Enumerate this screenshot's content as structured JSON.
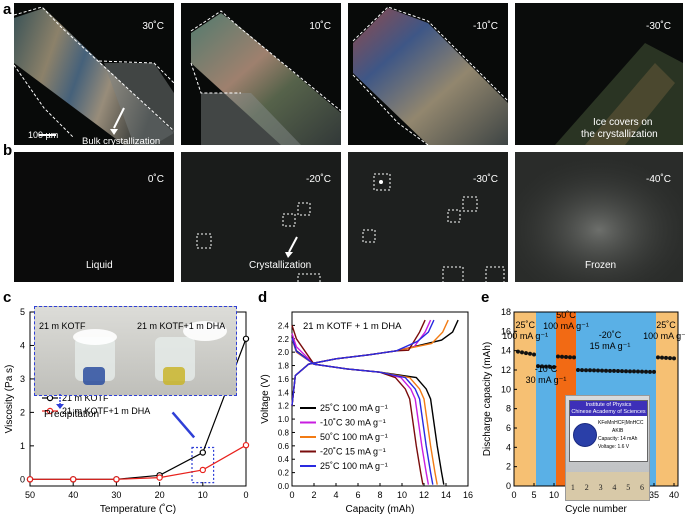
{
  "labels": {
    "a": "a",
    "b": "b",
    "c": "c",
    "d": "d",
    "e": "e"
  },
  "row_a": {
    "panels": [
      {
        "temp": "30˚C"
      },
      {
        "temp": "10˚C"
      },
      {
        "temp": "-10˚C"
      },
      {
        "temp": "-30˚C"
      }
    ],
    "scale_bar": "100 µm",
    "annotation_1": "Bulk crystallization",
    "annotation_2_line1": "Ice covers on",
    "annotation_2_line2": "the crystallization"
  },
  "row_b": {
    "panels": [
      {
        "temp": "0˚C",
        "caption": "Liquid"
      },
      {
        "temp": "-20˚C",
        "caption": "Crystallization"
      },
      {
        "temp": "-30˚C",
        "caption": ""
      },
      {
        "temp": "-40˚C",
        "caption": "Frozen"
      }
    ]
  },
  "panel_c": {
    "photo_label_left": "21 m KOTF",
    "photo_label_right": "21 m KOTF+1 m DHA",
    "precipitation": "Precipitation"
  },
  "panel_d": {
    "title": "21 m KOTF + 1 m DHA"
  },
  "panel_e": {
    "seg_labels": [
      {
        "temp": "25˚C",
        "rate": "100 mA g⁻¹"
      },
      {
        "temp": "-10˚C",
        "rate": "30 mA g⁻¹"
      },
      {
        "temp": "50˚C",
        "rate": "100 mA g⁻¹"
      },
      {
        "temp": "-20˚C",
        "rate": "15 mA g⁻¹"
      },
      {
        "temp": "25˚C",
        "rate": "100 mA g⁻¹"
      }
    ],
    "label_card": {
      "org_line1": "Institute of Physics",
      "org_line2": "Chinese Academy of Sciences",
      "chem": "KFeMnHCF|MnHCC",
      "name": "AKIB",
      "capacity": "Capacity: 14 mAh",
      "voltage": "Voltage: 1.6 V"
    },
    "ruler_numbers": [
      "1",
      "2",
      "3",
      "4",
      "5",
      "6"
    ]
  },
  "colors": {
    "warm_band": "#f6c073",
    "cool_band": "#5ab0e6",
    "hot_band": "#f26a14",
    "series_black": "#000000",
    "series_red": "#e8211c",
    "series_magenta": "#c81ee0",
    "series_orange": "#f27b14",
    "series_darkred": "#7a0c0c",
    "series_blue": "#2a2ae0"
  },
  "chart_data": [
    {
      "type": "line",
      "xlabel": "Temperature (˚C)",
      "ylabel": "Viscosity (Pa s)",
      "xlim": [
        50,
        0
      ],
      "ylim": [
        -0.2,
        5
      ],
      "x_ticks": [
        50,
        40,
        30,
        20,
        10,
        0
      ],
      "y_ticks": [
        0,
        1,
        2,
        3,
        4,
        5
      ],
      "legend_position": "bottom-left",
      "series": [
        {
          "name": "21 m KOTF",
          "color": "#000000",
          "x": [
            50,
            40,
            30,
            20,
            10,
            0
          ],
          "y": [
            0.0,
            0.0,
            0.0,
            0.12,
            0.8,
            4.2
          ]
        },
        {
          "name": "21 m KOTF+1 m DHA",
          "color": "#e8211c",
          "x": [
            50,
            40,
            30,
            20,
            10,
            0
          ],
          "y": [
            0.0,
            0.0,
            0.0,
            0.05,
            0.28,
            1.02
          ]
        }
      ]
    },
    {
      "type": "line",
      "xlabel": "Capacity (mAh)",
      "ylabel": "Voltage (V)",
      "xlim": [
        0,
        16
      ],
      "ylim": [
        0.0,
        2.6
      ],
      "x_ticks": [
        0,
        2,
        4,
        6,
        8,
        10,
        12,
        14,
        16
      ],
      "y_ticks": [
        0.0,
        0.2,
        0.4,
        0.6,
        0.8,
        1.0,
        1.2,
        1.4,
        1.6,
        1.8,
        2.0,
        2.2,
        2.4
      ],
      "legend_position": "bottom-left",
      "series": [
        {
          "name": "25˚C   100 mA g⁻¹",
          "color": "#000000",
          "charge_end": 15.1,
          "discharge_end": 13.8,
          "discharge_start_v": 2.02,
          "charge_v": 2.1
        },
        {
          "name": "-10˚C   30 mA g⁻¹",
          "color": "#c81ee0",
          "charge_end": 12.6,
          "discharge_end": 12.4,
          "discharge_start_v": 2.08,
          "charge_v": 2.0
        },
        {
          "name": "50˚C   100 mA g⁻¹",
          "color": "#f27b14",
          "charge_end": 14.2,
          "discharge_end": 13.2,
          "discharge_start_v": 2.0,
          "charge_v": 2.05
        },
        {
          "name": "-20˚C   15 mA g⁻¹",
          "color": "#7a0c0c",
          "charge_end": 12.1,
          "discharge_end": 11.9,
          "discharge_start_v": 2.2,
          "charge_v": 1.95
        },
        {
          "name": "25˚C   100 mA g⁻¹",
          "color": "#2a2ae0",
          "charge_end": 12.9,
          "discharge_end": 12.8,
          "discharge_start_v": 2.01,
          "charge_v": 2.08
        }
      ]
    },
    {
      "type": "scatter",
      "xlabel": "Cycle number",
      "ylabel": "Discharge capacity (mAh)",
      "xlim": [
        0,
        41
      ],
      "ylim": [
        0,
        18
      ],
      "x_ticks": [
        0,
        5,
        10,
        15,
        20,
        25,
        30,
        35,
        40
      ],
      "y_ticks": [
        0,
        2,
        4,
        6,
        8,
        10,
        12,
        14,
        16,
        18
      ],
      "segments": [
        {
          "from": 0,
          "to": 5,
          "band": "warm",
          "start": 13.9,
          "end": 13.6
        },
        {
          "from": 5,
          "to": 10,
          "band": "cool",
          "start": 12.4,
          "end": 12.3
        },
        {
          "from": 10,
          "to": 15,
          "band": "hot",
          "start": 13.4,
          "end": 13.3
        },
        {
          "from": 15,
          "to": 35,
          "band": "cool",
          "start": 12.0,
          "end": 11.8
        },
        {
          "from": 35,
          "to": 40,
          "band": "warm",
          "start": 13.3,
          "end": 13.2
        }
      ]
    }
  ]
}
